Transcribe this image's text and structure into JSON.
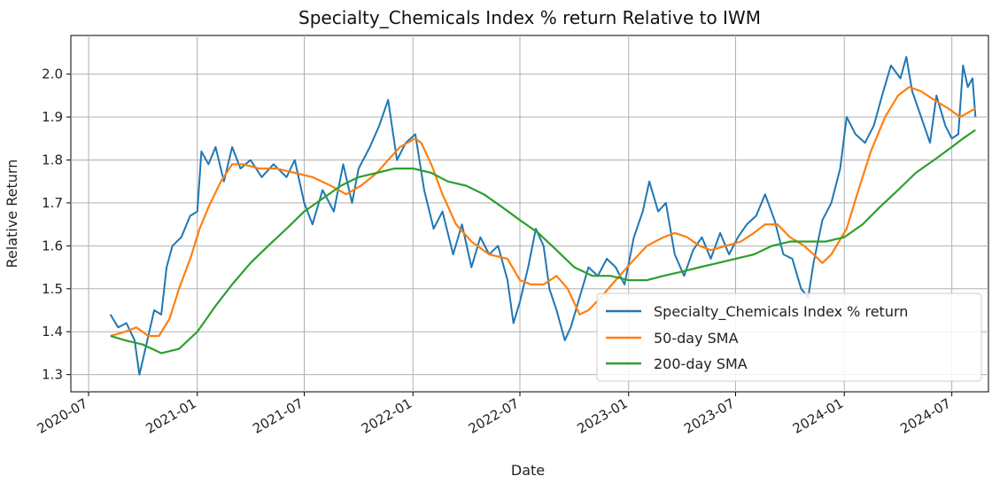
{
  "chart_data": {
    "type": "line",
    "title": "Specialty_Chemicals Index % return Relative to IWM",
    "xlabel": "Date",
    "ylabel": "Relative Return",
    "xlim": [
      "2020-06-01",
      "2024-09-01"
    ],
    "ylim": [
      1.26,
      2.09
    ],
    "grid": true,
    "legend_position": "lower-right",
    "x_ticks": [
      "2020-07",
      "2021-01",
      "2021-07",
      "2022-01",
      "2022-07",
      "2023-01",
      "2023-07",
      "2024-01",
      "2024-07"
    ],
    "y_ticks": [
      "1.3",
      "1.4",
      "1.5",
      "1.6",
      "1.7",
      "1.8",
      "1.9",
      "2.0"
    ],
    "series": [
      {
        "name": "Specialty_Chemicals Index % return",
        "color": "#1f77b4",
        "points": [
          [
            "2020-08-07",
            1.44
          ],
          [
            "2020-08-20",
            1.41
          ],
          [
            "2020-09-03",
            1.42
          ],
          [
            "2020-09-17",
            1.38
          ],
          [
            "2020-09-25",
            1.3
          ],
          [
            "2020-10-05",
            1.36
          ],
          [
            "2020-10-20",
            1.45
          ],
          [
            "2020-11-01",
            1.44
          ],
          [
            "2020-11-10",
            1.55
          ],
          [
            "2020-11-20",
            1.6
          ],
          [
            "2020-12-05",
            1.62
          ],
          [
            "2020-12-20",
            1.67
          ],
          [
            "2021-01-01",
            1.68
          ],
          [
            "2021-01-08",
            1.82
          ],
          [
            "2021-01-20",
            1.79
          ],
          [
            "2021-02-01",
            1.83
          ],
          [
            "2021-02-15",
            1.75
          ],
          [
            "2021-03-01",
            1.83
          ],
          [
            "2021-03-15",
            1.78
          ],
          [
            "2021-04-01",
            1.8
          ],
          [
            "2021-04-20",
            1.76
          ],
          [
            "2021-05-10",
            1.79
          ],
          [
            "2021-06-01",
            1.76
          ],
          [
            "2021-06-15",
            1.8
          ],
          [
            "2021-07-01",
            1.7
          ],
          [
            "2021-07-15",
            1.65
          ],
          [
            "2021-08-01",
            1.73
          ],
          [
            "2021-08-20",
            1.68
          ],
          [
            "2021-09-05",
            1.79
          ],
          [
            "2021-09-20",
            1.7
          ],
          [
            "2021-10-01",
            1.78
          ],
          [
            "2021-10-20",
            1.83
          ],
          [
            "2021-11-05",
            1.88
          ],
          [
            "2021-11-20",
            1.94
          ],
          [
            "2021-12-05",
            1.8
          ],
          [
            "2021-12-20",
            1.84
          ],
          [
            "2022-01-05",
            1.86
          ],
          [
            "2022-01-20",
            1.73
          ],
          [
            "2022-02-05",
            1.64
          ],
          [
            "2022-02-20",
            1.68
          ],
          [
            "2022-03-10",
            1.58
          ],
          [
            "2022-03-25",
            1.65
          ],
          [
            "2022-04-10",
            1.55
          ],
          [
            "2022-04-25",
            1.62
          ],
          [
            "2022-05-10",
            1.58
          ],
          [
            "2022-05-25",
            1.6
          ],
          [
            "2022-06-10",
            1.52
          ],
          [
            "2022-06-20",
            1.42
          ],
          [
            "2022-07-01",
            1.47
          ],
          [
            "2022-07-15",
            1.55
          ],
          [
            "2022-07-28",
            1.64
          ],
          [
            "2022-08-10",
            1.6
          ],
          [
            "2022-08-20",
            1.5
          ],
          [
            "2022-09-01",
            1.45
          ],
          [
            "2022-09-15",
            1.38
          ],
          [
            "2022-09-25",
            1.41
          ],
          [
            "2022-10-10",
            1.48
          ],
          [
            "2022-10-25",
            1.55
          ],
          [
            "2022-11-10",
            1.53
          ],
          [
            "2022-11-25",
            1.57
          ],
          [
            "2022-12-10",
            1.55
          ],
          [
            "2022-12-25",
            1.51
          ],
          [
            "2023-01-10",
            1.62
          ],
          [
            "2023-01-25",
            1.68
          ],
          [
            "2023-02-05",
            1.75
          ],
          [
            "2023-02-20",
            1.68
          ],
          [
            "2023-03-05",
            1.7
          ],
          [
            "2023-03-20",
            1.58
          ],
          [
            "2023-04-05",
            1.53
          ],
          [
            "2023-04-20",
            1.59
          ],
          [
            "2023-05-05",
            1.62
          ],
          [
            "2023-05-20",
            1.57
          ],
          [
            "2023-06-05",
            1.63
          ],
          [
            "2023-06-20",
            1.58
          ],
          [
            "2023-07-05",
            1.62
          ],
          [
            "2023-07-20",
            1.65
          ],
          [
            "2023-08-05",
            1.67
          ],
          [
            "2023-08-20",
            1.72
          ],
          [
            "2023-09-05",
            1.66
          ],
          [
            "2023-09-20",
            1.58
          ],
          [
            "2023-10-05",
            1.57
          ],
          [
            "2023-10-20",
            1.5
          ],
          [
            "2023-11-01",
            1.48
          ],
          [
            "2023-11-10",
            1.56
          ],
          [
            "2023-11-25",
            1.66
          ],
          [
            "2023-12-10",
            1.7
          ],
          [
            "2023-12-25",
            1.78
          ],
          [
            "2024-01-05",
            1.9
          ],
          [
            "2024-01-20",
            1.86
          ],
          [
            "2024-02-05",
            1.84
          ],
          [
            "2024-02-20",
            1.88
          ],
          [
            "2024-03-05",
            1.95
          ],
          [
            "2024-03-20",
            2.02
          ],
          [
            "2024-04-05",
            1.99
          ],
          [
            "2024-04-15",
            2.04
          ],
          [
            "2024-04-25",
            1.96
          ],
          [
            "2024-05-10",
            1.9
          ],
          [
            "2024-05-25",
            1.84
          ],
          [
            "2024-06-05",
            1.95
          ],
          [
            "2024-06-20",
            1.88
          ],
          [
            "2024-07-01",
            1.85
          ],
          [
            "2024-07-12",
            1.86
          ],
          [
            "2024-07-20",
            2.02
          ],
          [
            "2024-07-28",
            1.97
          ],
          [
            "2024-08-05",
            1.99
          ],
          [
            "2024-08-10",
            1.9
          ]
        ]
      },
      {
        "name": "50-day SMA",
        "color": "#ff7f0e",
        "points": [
          [
            "2020-08-07",
            1.39
          ],
          [
            "2020-09-01",
            1.4
          ],
          [
            "2020-09-20",
            1.41
          ],
          [
            "2020-10-10",
            1.39
          ],
          [
            "2020-10-28",
            1.39
          ],
          [
            "2020-11-15",
            1.43
          ],
          [
            "2020-12-01",
            1.5
          ],
          [
            "2020-12-20",
            1.57
          ],
          [
            "2021-01-05",
            1.64
          ],
          [
            "2021-01-20",
            1.69
          ],
          [
            "2021-02-10",
            1.75
          ],
          [
            "2021-03-01",
            1.79
          ],
          [
            "2021-03-20",
            1.79
          ],
          [
            "2021-04-15",
            1.78
          ],
          [
            "2021-05-15",
            1.78
          ],
          [
            "2021-06-15",
            1.77
          ],
          [
            "2021-07-15",
            1.76
          ],
          [
            "2021-08-15",
            1.74
          ],
          [
            "2021-09-10",
            1.72
          ],
          [
            "2021-10-05",
            1.74
          ],
          [
            "2021-11-01",
            1.77
          ],
          [
            "2021-11-20",
            1.8
          ],
          [
            "2021-12-10",
            1.83
          ],
          [
            "2022-01-05",
            1.85
          ],
          [
            "2022-01-15",
            1.84
          ],
          [
            "2022-02-01",
            1.79
          ],
          [
            "2022-02-20",
            1.72
          ],
          [
            "2022-03-15",
            1.65
          ],
          [
            "2022-04-10",
            1.61
          ],
          [
            "2022-05-10",
            1.58
          ],
          [
            "2022-06-10",
            1.57
          ],
          [
            "2022-07-01",
            1.52
          ],
          [
            "2022-07-20",
            1.51
          ],
          [
            "2022-08-10",
            1.51
          ],
          [
            "2022-09-01",
            1.53
          ],
          [
            "2022-09-20",
            1.5
          ],
          [
            "2022-10-10",
            1.44
          ],
          [
            "2022-10-25",
            1.45
          ],
          [
            "2022-11-15",
            1.48
          ],
          [
            "2022-12-10",
            1.52
          ],
          [
            "2023-01-05",
            1.56
          ],
          [
            "2023-02-01",
            1.6
          ],
          [
            "2023-03-01",
            1.62
          ],
          [
            "2023-03-20",
            1.63
          ],
          [
            "2023-04-10",
            1.62
          ],
          [
            "2023-05-01",
            1.6
          ],
          [
            "2023-05-20",
            1.59
          ],
          [
            "2023-06-15",
            1.6
          ],
          [
            "2023-07-10",
            1.61
          ],
          [
            "2023-08-01",
            1.63
          ],
          [
            "2023-08-20",
            1.65
          ],
          [
            "2023-09-10",
            1.65
          ],
          [
            "2023-10-01",
            1.62
          ],
          [
            "2023-10-25",
            1.6
          ],
          [
            "2023-11-10",
            1.58
          ],
          [
            "2023-11-25",
            1.56
          ],
          [
            "2023-12-10",
            1.58
          ],
          [
            "2024-01-05",
            1.64
          ],
          [
            "2024-01-25",
            1.73
          ],
          [
            "2024-02-15",
            1.82
          ],
          [
            "2024-03-10",
            1.9
          ],
          [
            "2024-04-01",
            1.95
          ],
          [
            "2024-04-20",
            1.97
          ],
          [
            "2024-05-10",
            1.96
          ],
          [
            "2024-06-01",
            1.94
          ],
          [
            "2024-06-25",
            1.92
          ],
          [
            "2024-07-15",
            1.9
          ],
          [
            "2024-07-28",
            1.91
          ],
          [
            "2024-08-10",
            1.92
          ]
        ]
      },
      {
        "name": "200-day SMA",
        "color": "#2ca02c",
        "points": [
          [
            "2020-08-07",
            1.39
          ],
          [
            "2020-09-01",
            1.38
          ],
          [
            "2020-10-01",
            1.37
          ],
          [
            "2020-11-01",
            1.35
          ],
          [
            "2020-12-01",
            1.36
          ],
          [
            "2021-01-01",
            1.4
          ],
          [
            "2021-02-01",
            1.46
          ],
          [
            "2021-03-01",
            1.51
          ],
          [
            "2021-04-01",
            1.56
          ],
          [
            "2021-05-01",
            1.6
          ],
          [
            "2021-06-01",
            1.64
          ],
          [
            "2021-07-01",
            1.68
          ],
          [
            "2021-08-01",
            1.71
          ],
          [
            "2021-09-01",
            1.74
          ],
          [
            "2021-10-01",
            1.76
          ],
          [
            "2021-11-01",
            1.77
          ],
          [
            "2021-12-01",
            1.78
          ],
          [
            "2022-01-01",
            1.78
          ],
          [
            "2022-02-01",
            1.77
          ],
          [
            "2022-03-01",
            1.75
          ],
          [
            "2022-04-01",
            1.74
          ],
          [
            "2022-05-01",
            1.72
          ],
          [
            "2022-06-01",
            1.69
          ],
          [
            "2022-07-01",
            1.66
          ],
          [
            "2022-08-01",
            1.63
          ],
          [
            "2022-09-01",
            1.59
          ],
          [
            "2022-10-01",
            1.55
          ],
          [
            "2022-11-01",
            1.53
          ],
          [
            "2022-12-01",
            1.53
          ],
          [
            "2023-01-01",
            1.52
          ],
          [
            "2023-02-01",
            1.52
          ],
          [
            "2023-03-01",
            1.53
          ],
          [
            "2023-04-01",
            1.54
          ],
          [
            "2023-05-01",
            1.55
          ],
          [
            "2023-06-01",
            1.56
          ],
          [
            "2023-07-01",
            1.57
          ],
          [
            "2023-08-01",
            1.58
          ],
          [
            "2023-09-01",
            1.6
          ],
          [
            "2023-10-01",
            1.61
          ],
          [
            "2023-11-01",
            1.61
          ],
          [
            "2023-12-01",
            1.61
          ],
          [
            "2024-01-01",
            1.62
          ],
          [
            "2024-02-01",
            1.65
          ],
          [
            "2024-03-01",
            1.69
          ],
          [
            "2024-04-01",
            1.73
          ],
          [
            "2024-05-01",
            1.77
          ],
          [
            "2024-06-01",
            1.8
          ],
          [
            "2024-07-01",
            1.83
          ],
          [
            "2024-07-20",
            1.85
          ],
          [
            "2024-08-10",
            1.87
          ]
        ]
      }
    ]
  }
}
